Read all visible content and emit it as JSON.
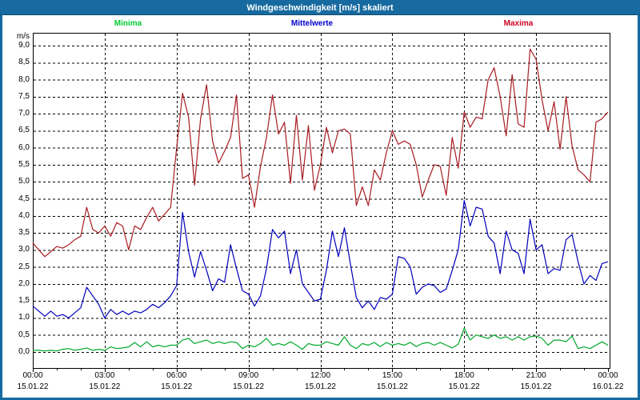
{
  "window": {
    "title": "Windgeschwindigkeit [m/s] skaliert"
  },
  "colors": {
    "frame": "#176a9f",
    "titlebar": "#176a9f",
    "title_text": "#ffffff",
    "plot_border": "#000000",
    "grid": "#000000",
    "background": "#ffffff"
  },
  "chart_data": {
    "type": "line",
    "title": "Windgeschwindigkeit [m/s] skaliert",
    "ylabel": "m/s",
    "ylim": [
      0,
      9
    ],
    "y_tick_step": 0.5,
    "y_tick_labels": [
      "0,0",
      "0,5",
      "1,0",
      "1,5",
      "2,0",
      "2,5",
      "3,0",
      "3,5",
      "4,0",
      "4,5",
      "5,0",
      "5,5",
      "6,0",
      "6,5",
      "7,0",
      "7,5",
      "8,0",
      "8,5",
      "9,0"
    ],
    "x_range_hours": [
      0,
      24
    ],
    "step_hours": 0.25,
    "x_ticks": [
      {
        "time": "00:00",
        "date": "15.01.22"
      },
      {
        "time": "03:00",
        "date": "15.01.22"
      },
      {
        "time": "06:00",
        "date": "15.01.22"
      },
      {
        "time": "09:00",
        "date": "15.01.22"
      },
      {
        "time": "12:00",
        "date": "15.01.22"
      },
      {
        "time": "15:00",
        "date": "15.01.22"
      },
      {
        "time": "18:00",
        "date": "15.01.22"
      },
      {
        "time": "21:00",
        "date": "15.01.22"
      },
      {
        "time": "00:00",
        "date": "16.01.22"
      }
    ],
    "grid": "dashed",
    "legend_position": "top",
    "series": [
      {
        "name": "Minima",
        "color": "#00a82a",
        "label_color": "#00cc33",
        "values": [
          0.05,
          0.05,
          0.03,
          0.05,
          0.03,
          0.08,
          0.1,
          0.05,
          0.08,
          0.12,
          0.05,
          0.08,
          0.05,
          0.15,
          0.1,
          0.12,
          0.15,
          0.28,
          0.15,
          0.3,
          0.15,
          0.2,
          0.15,
          0.2,
          0.2,
          0.35,
          0.4,
          0.25,
          0.3,
          0.35,
          0.25,
          0.3,
          0.25,
          0.3,
          0.28,
          0.1,
          0.2,
          0.15,
          0.25,
          0.4,
          0.2,
          0.25,
          0.2,
          0.3,
          0.2,
          0.08,
          0.25,
          0.2,
          0.2,
          0.3,
          0.25,
          0.2,
          0.45,
          0.2,
          0.1,
          0.25,
          0.2,
          0.28,
          0.16,
          0.28,
          0.2,
          0.25,
          0.2,
          0.28,
          0.16,
          0.25,
          0.28,
          0.2,
          0.28,
          0.2,
          0.12,
          0.23,
          0.7,
          0.35,
          0.5,
          0.45,
          0.4,
          0.5,
          0.4,
          0.45,
          0.35,
          0.45,
          0.35,
          0.45,
          0.47,
          0.4,
          0.2,
          0.35,
          0.35,
          0.3,
          0.47,
          0.1,
          0.15,
          0.1,
          0.2,
          0.3,
          0.2
        ]
      },
      {
        "name": "Mittelwerte",
        "color": "#0000bb",
        "label_color": "#0000cc",
        "values": [
          1.35,
          1.2,
          1.05,
          1.2,
          1.05,
          1.1,
          1.0,
          1.15,
          1.3,
          1.9,
          1.65,
          1.4,
          1.0,
          1.25,
          1.1,
          1.2,
          1.1,
          1.2,
          1.15,
          1.25,
          1.4,
          1.3,
          1.45,
          1.65,
          1.95,
          4.1,
          2.95,
          2.2,
          2.95,
          2.4,
          1.8,
          2.15,
          2.05,
          3.15,
          2.45,
          1.8,
          1.7,
          1.35,
          1.65,
          2.45,
          3.6,
          3.35,
          3.55,
          2.3,
          3.0,
          2.0,
          1.75,
          1.5,
          1.55,
          2.4,
          3.55,
          2.8,
          3.65,
          2.6,
          1.6,
          1.3,
          1.5,
          1.25,
          1.6,
          1.55,
          1.7,
          2.8,
          2.75,
          2.5,
          1.7,
          1.9,
          2.0,
          1.95,
          1.75,
          1.85,
          2.4,
          3.0,
          4.45,
          3.7,
          4.25,
          4.2,
          3.4,
          3.2,
          2.3,
          3.55,
          3.0,
          2.9,
          2.3,
          3.9,
          3.0,
          3.15,
          2.3,
          2.45,
          2.4,
          3.3,
          3.45,
          2.65,
          2.0,
          2.25,
          2.1,
          2.6,
          2.65
        ]
      },
      {
        "name": "Maxima",
        "color": "#a81c22",
        "label_color": "#cc0022",
        "values": [
          3.2,
          3.0,
          2.8,
          2.95,
          3.1,
          3.05,
          3.15,
          3.3,
          3.4,
          4.25,
          3.6,
          3.5,
          3.7,
          3.4,
          3.8,
          3.7,
          3.0,
          3.7,
          3.6,
          3.95,
          4.25,
          3.85,
          4.05,
          4.25,
          6.0,
          7.6,
          6.9,
          4.9,
          6.85,
          7.85,
          6.2,
          5.55,
          5.9,
          6.3,
          7.55,
          5.1,
          5.2,
          4.25,
          5.45,
          6.3,
          7.55,
          6.4,
          6.75,
          4.95,
          6.95,
          5.05,
          6.65,
          4.75,
          5.5,
          6.6,
          5.85,
          6.5,
          6.55,
          6.4,
          4.3,
          4.85,
          4.3,
          5.35,
          5.05,
          5.85,
          6.5,
          6.1,
          6.2,
          6.1,
          5.5,
          4.55,
          5.05,
          5.5,
          5.45,
          4.6,
          6.3,
          5.4,
          7.05,
          6.6,
          6.9,
          6.85,
          8.0,
          8.35,
          7.5,
          6.35,
          8.15,
          6.7,
          6.6,
          8.9,
          8.6,
          7.4,
          6.5,
          7.35,
          5.95,
          7.5,
          6.05,
          5.35,
          5.2,
          5.0,
          6.75,
          6.85,
          7.05
        ]
      }
    ]
  }
}
